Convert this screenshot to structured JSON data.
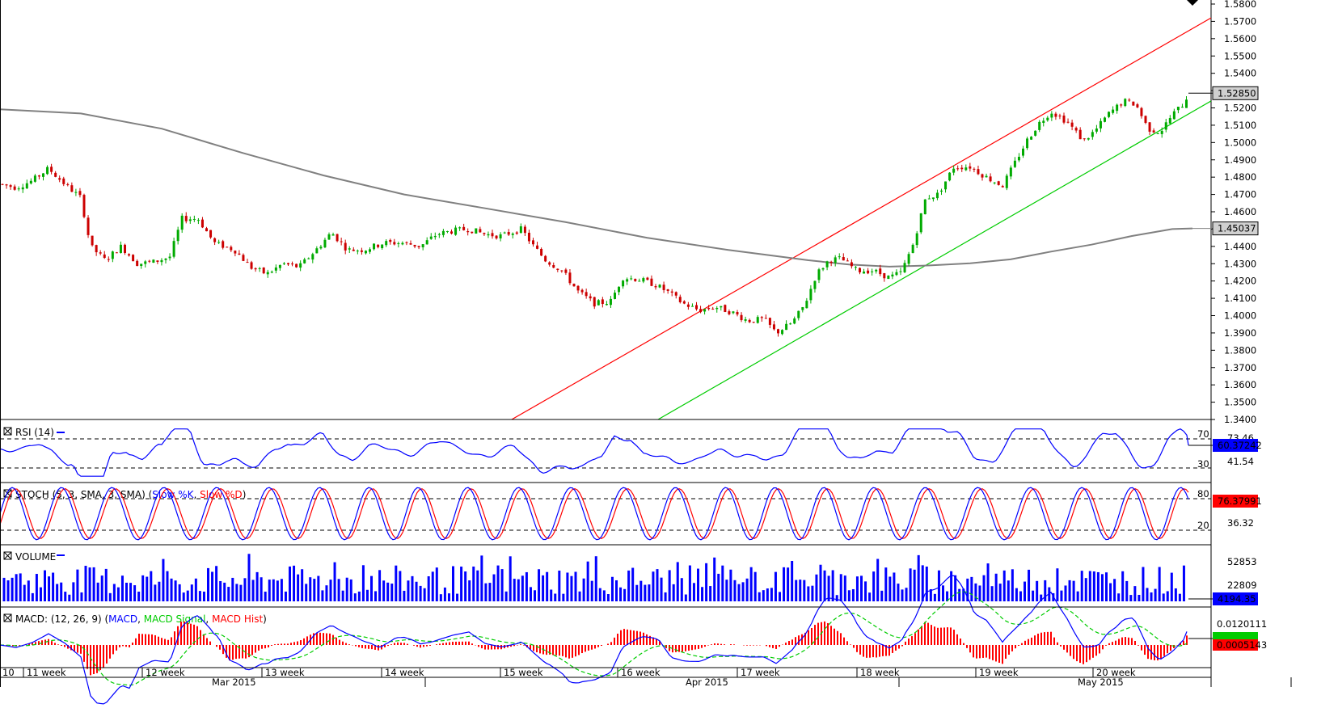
{
  "chart_data": [
    {
      "type": "candlestick",
      "panel": "price",
      "y_ticks": [
        "1.5800",
        "1.5700",
        "1.5600",
        "1.5500",
        "1.5400",
        "1.5300",
        "1.5200",
        "1.5100",
        "1.5000",
        "1.4900",
        "1.4800",
        "1.4700",
        "1.4600",
        "1.4500",
        "1.4400",
        "1.4300",
        "1.4200",
        "1.4100",
        "1.4000",
        "1.3900",
        "1.3800",
        "1.3700",
        "1.3600",
        "1.3500",
        "1.3400"
      ],
      "ylim": [
        1.34,
        1.58
      ],
      "current_price_label": "1.52850",
      "current_price": 1.5285,
      "ma_label": "1.45037",
      "ma_value": 1.45037,
      "ma_points": [
        [
          0,
          1.5192
        ],
        [
          100,
          1.5168
        ],
        [
          200,
          1.508
        ],
        [
          300,
          1.494
        ],
        [
          400,
          1.481
        ],
        [
          500,
          1.47
        ],
        [
          600,
          1.462
        ],
        [
          700,
          1.454
        ],
        [
          800,
          1.445
        ],
        [
          900,
          1.438
        ],
        [
          1000,
          1.432
        ],
        [
          1050,
          1.4295
        ],
        [
          1100,
          1.4283
        ],
        [
          1150,
          1.429
        ],
        [
          1200,
          1.4302
        ],
        [
          1250,
          1.4325
        ],
        [
          1300,
          1.437
        ],
        [
          1350,
          1.441
        ],
        [
          1400,
          1.446
        ],
        [
          1450,
          1.45
        ],
        [
          1475,
          1.4504
        ]
      ],
      "channel_upper": [
        [
          0,
          1.34
        ],
        [
          1500,
          1.573
        ]
      ],
      "channel_lower": [
        [
          0,
          1.34
        ],
        [
          1500,
          1.523
        ]
      ],
      "price_path": [
        [
          0,
          1.476
        ],
        [
          20,
          1.474
        ],
        [
          40,
          1.478
        ],
        [
          60,
          1.485
        ],
        [
          80,
          1.476
        ],
        [
          100,
          1.468
        ],
        [
          112,
          1.44
        ],
        [
          130,
          1.432
        ],
        [
          150,
          1.44
        ],
        [
          170,
          1.43
        ],
        [
          190,
          1.431
        ],
        [
          210,
          1.434
        ],
        [
          225,
          1.456
        ],
        [
          245,
          1.456
        ],
        [
          265,
          1.442
        ],
        [
          290,
          1.438
        ],
        [
          310,
          1.428
        ],
        [
          330,
          1.424
        ],
        [
          350,
          1.43
        ],
        [
          370,
          1.428
        ],
        [
          395,
          1.44
        ],
        [
          410,
          1.448
        ],
        [
          430,
          1.438
        ],
        [
          450,
          1.438
        ],
        [
          475,
          1.442
        ],
        [
          500,
          1.442
        ],
        [
          520,
          1.44
        ],
        [
          540,
          1.447
        ],
        [
          560,
          1.449
        ],
        [
          580,
          1.45
        ],
        [
          600,
          1.447
        ],
        [
          620,
          1.446
        ],
        [
          645,
          1.45
        ],
        [
          660,
          1.44
        ],
        [
          675,
          1.432
        ],
        [
          695,
          1.426
        ],
        [
          715,
          1.414
        ],
        [
          735,
          1.407
        ],
        [
          755,
          1.408
        ],
        [
          770,
          1.422
        ],
        [
          790,
          1.421
        ],
        [
          810,
          1.418
        ],
        [
          825,
          1.414
        ],
        [
          845,
          1.407
        ],
        [
          865,
          1.403
        ],
        [
          885,
          1.405
        ],
        [
          905,
          1.402
        ],
        [
          925,
          1.397
        ],
        [
          945,
          1.398
        ],
        [
          960,
          1.39
        ],
        [
          980,
          1.396
        ],
        [
          995,
          1.406
        ],
        [
          1010,
          1.424
        ],
        [
          1025,
          1.432
        ],
        [
          1040,
          1.433
        ],
        [
          1060,
          1.426
        ],
        [
          1080,
          1.426
        ],
        [
          1100,
          1.422
        ],
        [
          1115,
          1.425
        ],
        [
          1130,
          1.442
        ],
        [
          1145,
          1.468
        ],
        [
          1160,
          1.47
        ],
        [
          1180,
          1.486
        ],
        [
          1200,
          1.486
        ],
        [
          1220,
          1.48
        ],
        [
          1240,
          1.475
        ],
        [
          1255,
          1.488
        ],
        [
          1270,
          1.501
        ],
        [
          1285,
          1.511
        ],
        [
          1300,
          1.518
        ],
        [
          1320,
          1.512
        ],
        [
          1340,
          1.501
        ],
        [
          1355,
          1.507
        ],
        [
          1370,
          1.516
        ],
        [
          1390,
          1.524
        ],
        [
          1405,
          1.522
        ],
        [
          1420,
          1.508
        ],
        [
          1435,
          1.506
        ],
        [
          1450,
          1.516
        ],
        [
          1465,
          1.523
        ],
        [
          1470,
          1.5285
        ]
      ],
      "x_labels": [
        {
          "text": "10",
          "x": 3,
          "row": 1
        },
        {
          "text": "11 week",
          "x": 33,
          "row": 1
        },
        {
          "text": "12 week",
          "x": 180,
          "row": 1
        },
        {
          "text": "13 week",
          "x": 328,
          "row": 1
        },
        {
          "text": "14 week",
          "x": 476,
          "row": 1
        },
        {
          "text": "15 week",
          "x": 623,
          "row": 1
        },
        {
          "text": "16 week",
          "x": 768,
          "row": 1
        },
        {
          "text": "17 week",
          "x": 916,
          "row": 1
        },
        {
          "text": "18 week",
          "x": 1064,
          "row": 1
        },
        {
          "text": "19 week",
          "x": 1211,
          "row": 1
        },
        {
          "text": "20 week",
          "x": 1356,
          "row": 1
        },
        {
          "text": "Mar 2015",
          "x": 262,
          "row": 2
        },
        {
          "text": "Apr 2015",
          "x": 848,
          "row": 2
        },
        {
          "text": "May 2015",
          "x": 1333,
          "row": 2
        }
      ]
    },
    {
      "type": "line",
      "panel": "rsi",
      "title": "RSI (14)",
      "levels": [
        "70",
        "30"
      ],
      "y_labels": [
        "73.46",
        "41.54"
      ],
      "current_label": "60.37242",
      "ylim": [
        0,
        100
      ]
    },
    {
      "type": "line",
      "panel": "stoch",
      "title": "STOCH (5, 3, SMA, 3, SMA)",
      "series": [
        {
          "name": "Slow %K",
          "color": "#0000ff"
        },
        {
          "name": "Slow %D",
          "color": "#ff0000"
        }
      ],
      "levels": [
        "80",
        "20"
      ],
      "y_labels": [
        "36.32"
      ],
      "current_label": "76.37991",
      "ylim": [
        0,
        100
      ]
    },
    {
      "type": "bar",
      "panel": "volume",
      "title": "VOLUME",
      "y_labels": [
        "52853",
        "22809"
      ],
      "current_label": "4194.35",
      "ylim": [
        0,
        62000
      ]
    },
    {
      "type": "line",
      "panel": "macd",
      "title": "MACD",
      "params": "(12, 26, 9)",
      "series": [
        {
          "name": "MACD",
          "color": "#0000ff"
        },
        {
          "name": "MACD Signal",
          "color": "#00cc00"
        },
        {
          "name": "MACD Hist",
          "color": "#ff0000"
        }
      ],
      "y_labels": [
        "0.0120111"
      ],
      "current_label": "0.0005143",
      "ylim": [
        -0.024,
        0.016
      ]
    }
  ],
  "colors": {
    "bull": "#00aa00",
    "bear": "#cc0000",
    "ma": "#808080",
    "upper_channel": "#ff0000",
    "lower_channel": "#00cc00",
    "line_blue": "#0000ff",
    "line_red": "#ff0000",
    "line_green": "#00cc00",
    "volume": "#0000ff"
  },
  "panel_icons": [
    "close-box-icon"
  ]
}
